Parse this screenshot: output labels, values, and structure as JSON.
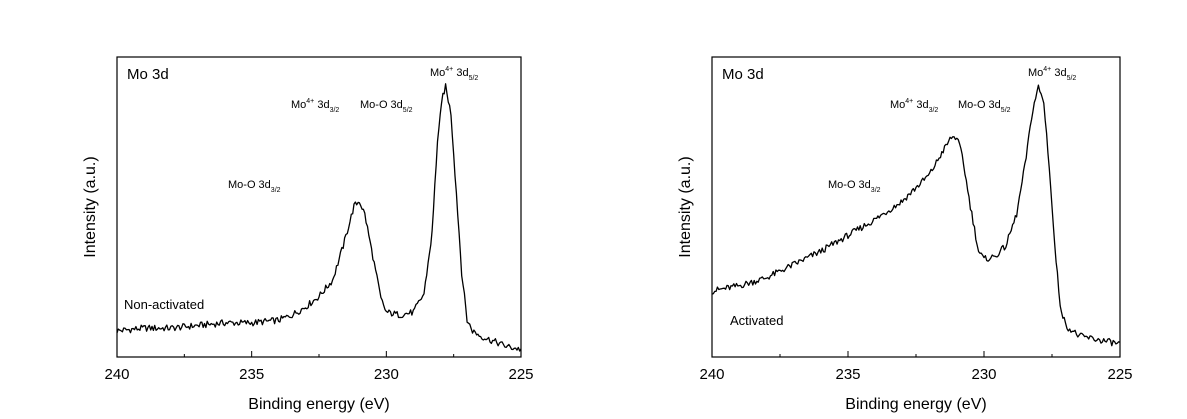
{
  "chart_data": [
    {
      "type": "line",
      "title": "Mo 3d",
      "xlabel": "Binding energy (eV)",
      "ylabel": "Intensity (a.u.)",
      "xlim": [
        240,
        225
      ],
      "x_reversed": true,
      "xticks": [
        "240",
        "235",
        "230",
        "225"
      ],
      "y_ticks_shown": false,
      "sample_label": "Non-activated",
      "annotations": [
        {
          "base": "Mo-O 3d",
          "sup": "",
          "sub": "3/2",
          "x": 231.0
        },
        {
          "base": "Mo",
          "sup": "4+",
          "mid": " 3d",
          "sub": "3/2",
          "x": 231.0
        },
        {
          "base": "Mo-O 3d",
          "sup": "",
          "sub": "5/2",
          "x": 228.0
        },
        {
          "base": "Mo",
          "sup": "4+",
          "mid": " 3d",
          "sub": "5/2",
          "x": 227.8
        }
      ],
      "series": [
        {
          "x": [
            240,
            239,
            238,
            237,
            236,
            235,
            234,
            233.5,
            233,
            232.5,
            232,
            231.6,
            231.2,
            231.0,
            230.8,
            230.5,
            230.2,
            230.0,
            229.5,
            229.0,
            228.6,
            228.3,
            228.1,
            227.9,
            227.8,
            227.6,
            227.4,
            227.2,
            227.0,
            226.8,
            226.5,
            226.0,
            225.5,
            225
          ],
          "y": [
            0.08,
            0.09,
            0.09,
            0.1,
            0.11,
            0.11,
            0.12,
            0.14,
            0.17,
            0.21,
            0.27,
            0.4,
            0.55,
            0.57,
            0.52,
            0.36,
            0.2,
            0.15,
            0.14,
            0.15,
            0.22,
            0.45,
            0.8,
            0.97,
            1.0,
            0.9,
            0.6,
            0.3,
            0.12,
            0.08,
            0.06,
            0.04,
            0.02,
            0.01
          ]
        }
      ]
    },
    {
      "type": "line",
      "title": "Mo 3d",
      "xlabel": "Binding energy (eV)",
      "ylabel": "Intensity (a.u.)",
      "xlim": [
        240,
        225
      ],
      "x_reversed": true,
      "xticks": [
        "240",
        "235",
        "230",
        "225"
      ],
      "y_ticks_shown": false,
      "sample_label": "Activated",
      "annotations": [
        {
          "base": "Mo-O 3d",
          "sup": "",
          "sub": "3/2",
          "x": 232.0
        },
        {
          "base": "Mo",
          "sup": "4+",
          "mid": " 3d",
          "sub": "3/2",
          "x": 231.0
        },
        {
          "base": "Mo-O 3d",
          "sup": "",
          "sub": "5/2",
          "x": 228.5
        },
        {
          "base": "Mo",
          "sup": "4+",
          "mid": " 3d",
          "sub": "5/2",
          "x": 227.9
        }
      ],
      "series": [
        {
          "x": [
            240,
            239,
            238,
            237,
            236,
            235,
            234,
            233,
            232.5,
            232,
            231.5,
            231.2,
            231.0,
            230.8,
            230.5,
            230.2,
            230.0,
            229.6,
            229.2,
            228.8,
            228.5,
            228.2,
            228.0,
            227.8,
            227.6,
            227.4,
            227.2,
            227.0,
            226.5,
            226.0,
            225.5,
            225
          ],
          "y": [
            0.23,
            0.25,
            0.28,
            0.33,
            0.38,
            0.44,
            0.5,
            0.57,
            0.62,
            0.67,
            0.76,
            0.81,
            0.81,
            0.74,
            0.55,
            0.38,
            0.35,
            0.36,
            0.4,
            0.52,
            0.7,
            0.92,
            1.0,
            0.94,
            0.7,
            0.4,
            0.18,
            0.1,
            0.06,
            0.05,
            0.04,
            0.03
          ]
        }
      ]
    }
  ]
}
